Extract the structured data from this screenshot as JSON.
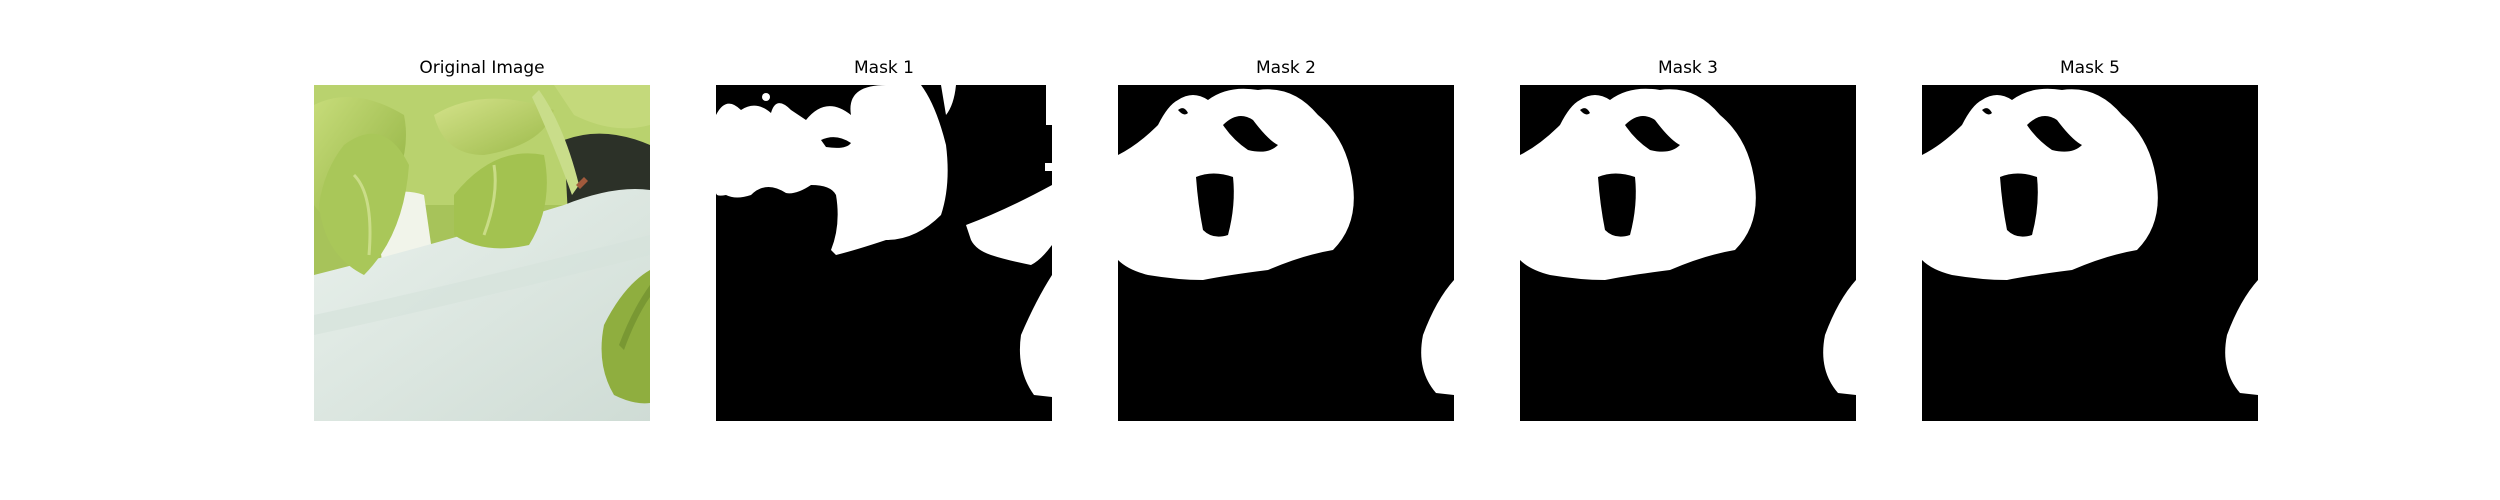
{
  "figure": {
    "panels": [
      {
        "title": "Original Image"
      },
      {
        "title": "Mask 1"
      },
      {
        "title": "Mask 2"
      },
      {
        "title": "Mask 3"
      },
      {
        "title": "Mask 5"
      }
    ]
  },
  "colors": {
    "mask_foreground": "#ffffff",
    "mask_background": "#000000",
    "leaf_light": "#b7d166",
    "leaf_mid": "#93b447",
    "leaf_dark": "#5d7e2a",
    "tray": "#dde8e2"
  }
}
